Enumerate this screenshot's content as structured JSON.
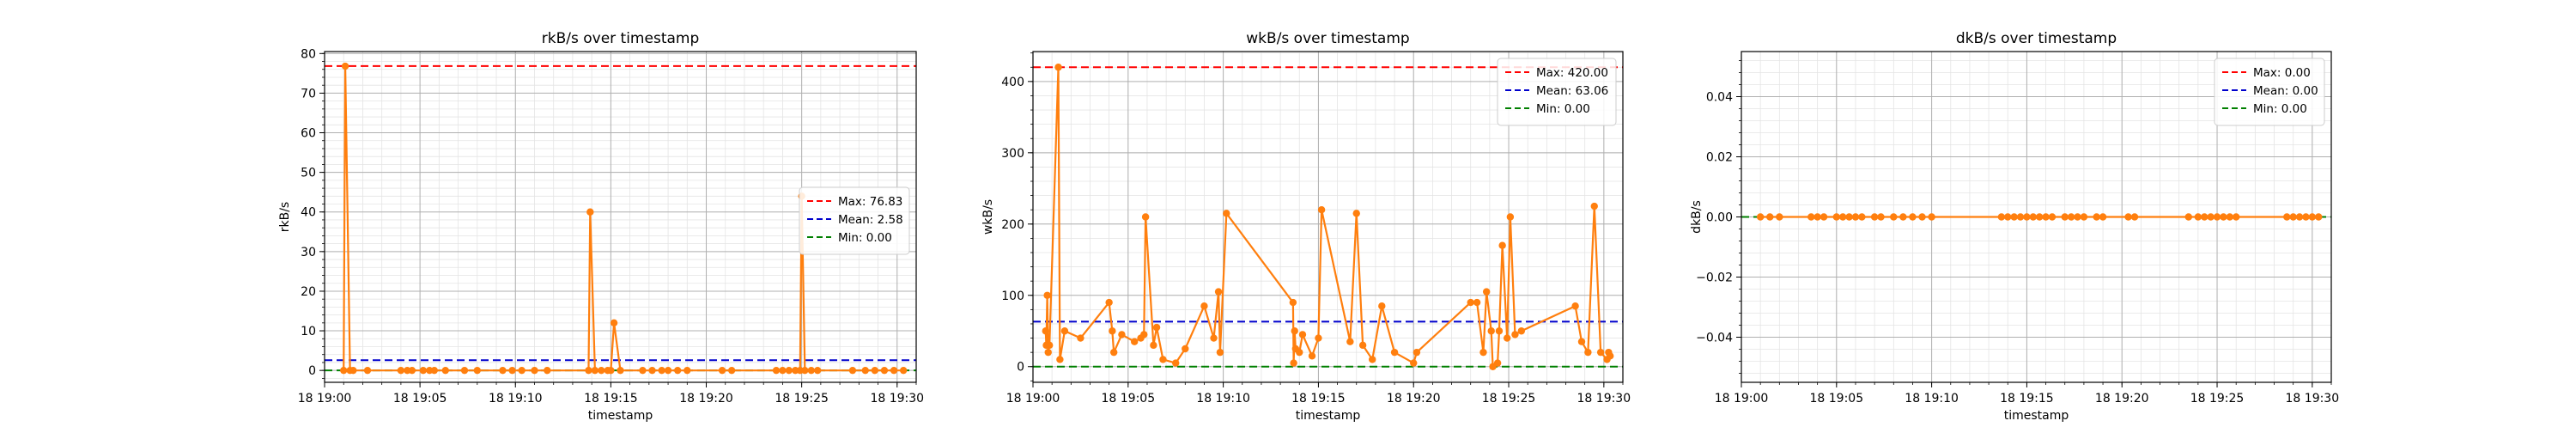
{
  "colors": {
    "series": "#ff7f0e",
    "max": "#ff0000",
    "mean": "#0000cc",
    "min": "#008000",
    "grid": "#b0b0b0"
  },
  "chart_data": [
    {
      "type": "line",
      "title": "rkB/s over timestamp",
      "xlabel": "timestamp",
      "ylabel": "rkB/s",
      "xlim": [
        "19:00",
        "19:31"
      ],
      "ylim": [
        -3,
        80.5
      ],
      "yticks": [
        0,
        10,
        20,
        30,
        40,
        50,
        60,
        70,
        80
      ],
      "ytick_labels": [
        "0",
        "10",
        "20",
        "30",
        "40",
        "50",
        "60",
        "70",
        "80"
      ],
      "xticks": [
        "19:00",
        "19:05",
        "19:10",
        "19:15",
        "19:20",
        "19:25",
        "19:30"
      ],
      "xtick_labels": [
        "18 19:00",
        "18 19:05",
        "18 19:10",
        "18 19:15",
        "18 19:20",
        "18 19:25",
        "18 19:30"
      ],
      "grid": true,
      "legend_position": "center-right",
      "series": [
        {
          "x": [
            "19:01:00",
            "19:01:05",
            "19:01:20",
            "19:01:30",
            "19:02:15",
            "19:04:00",
            "19:04:20",
            "19:04:35",
            "19:05:10",
            "19:05:30",
            "19:05:45",
            "19:06:20",
            "19:07:20",
            "19:08:00",
            "19:09:20",
            "19:09:50",
            "19:10:20",
            "19:11:00",
            "19:11:40",
            "19:13:50",
            "19:13:55",
            "19:14:10",
            "19:14:30",
            "19:14:50",
            "19:15:00",
            "19:15:10",
            "19:15:30",
            "19:16:40",
            "19:17:10",
            "19:17:40",
            "19:18:00",
            "19:18:30",
            "19:19:00",
            "19:20:50",
            "19:21:20",
            "19:23:40",
            "19:24:00",
            "19:24:20",
            "19:24:40",
            "19:24:55",
            "19:25:00",
            "19:25:10",
            "19:25:30",
            "19:25:50",
            "19:27:40",
            "19:28:20",
            "19:28:50",
            "19:29:20",
            "19:29:50",
            "19:30:20"
          ],
          "values": [
            0,
            76.8,
            0,
            0,
            0,
            0,
            0,
            0,
            0,
            0,
            0,
            0,
            0,
            0,
            0,
            0,
            0,
            0,
            0,
            0,
            40,
            0,
            0,
            0,
            0,
            12,
            0,
            0,
            0,
            0,
            0,
            0,
            0,
            0,
            0,
            0,
            0,
            0,
            0,
            0,
            44,
            0,
            0,
            0,
            0,
            0,
            0,
            0,
            0,
            0
          ]
        }
      ],
      "reference_lines": [
        {
          "label": "Max: 76.83",
          "value": 76.83,
          "color_key": "max"
        },
        {
          "label": "Mean: 2.58",
          "value": 2.58,
          "color_key": "mean"
        },
        {
          "label": "Min: 0.00",
          "value": 0.0,
          "color_key": "min"
        }
      ]
    },
    {
      "type": "line",
      "title": "wkB/s over timestamp",
      "xlabel": "timestamp",
      "ylabel": "wkB/s",
      "xlim": [
        "19:00",
        "19:31"
      ],
      "ylim": [
        -22,
        442
      ],
      "yticks": [
        0,
        100,
        200,
        300,
        400
      ],
      "ytick_labels": [
        "0",
        "100",
        "200",
        "300",
        "400"
      ],
      "xticks": [
        "19:00",
        "19:05",
        "19:10",
        "19:15",
        "19:20",
        "19:25",
        "19:30"
      ],
      "xtick_labels": [
        "18 19:00",
        "18 19:05",
        "18 19:10",
        "18 19:15",
        "18 19:20",
        "18 19:25",
        "18 19:30"
      ],
      "grid": true,
      "legend_position": "top-right",
      "series": [
        {
          "x": [
            "19:00:40",
            "19:00:42",
            "19:00:45",
            "19:00:48",
            "19:00:52",
            "19:01:20",
            "19:01:25",
            "19:01:40",
            "19:02:30",
            "19:04:00",
            "19:04:10",
            "19:04:15",
            "19:04:40",
            "19:05:20",
            "19:05:40",
            "19:05:50",
            "19:05:55",
            "19:06:20",
            "19:06:30",
            "19:06:50",
            "19:07:30",
            "19:08:00",
            "19:09:00",
            "19:09:30",
            "19:09:45",
            "19:09:50",
            "19:10:10",
            "19:13:40",
            "19:13:42",
            "19:13:45",
            "19:13:48",
            "19:14:00",
            "19:14:10",
            "19:14:40",
            "19:15:00",
            "19:15:10",
            "19:16:40",
            "19:17:00",
            "19:17:20",
            "19:17:50",
            "19:18:20",
            "19:19:00",
            "19:20:00",
            "19:20:10",
            "19:23:00",
            "19:23:20",
            "19:23:40",
            "19:23:50",
            "19:24:05",
            "19:24:10",
            "19:24:25",
            "19:24:30",
            "19:24:40",
            "19:24:55",
            "19:25:05",
            "19:25:20",
            "19:25:40",
            "19:28:30",
            "19:28:50",
            "19:29:10",
            "19:29:30",
            "19:29:50",
            "19:30:10",
            "19:30:15",
            "19:30:20"
          ],
          "values": [
            50,
            30,
            100,
            20,
            30,
            420,
            10,
            50,
            40,
            90,
            50,
            20,
            45,
            35,
            40,
            45,
            210,
            30,
            55,
            10,
            5,
            25,
            85,
            40,
            105,
            20,
            215,
            90,
            5,
            50,
            25,
            20,
            45,
            15,
            40,
            220,
            35,
            215,
            30,
            10,
            85,
            20,
            5,
            20,
            90,
            90,
            20,
            105,
            50,
            0,
            5,
            50,
            170,
            40,
            210,
            45,
            50,
            85,
            35,
            20,
            225,
            20,
            10,
            20,
            15
          ]
        }
      ],
      "reference_lines": [
        {
          "label": "Max: 420.00",
          "value": 420.0,
          "color_key": "max"
        },
        {
          "label": "Mean: 63.06",
          "value": 63.06,
          "color_key": "mean"
        },
        {
          "label": "Min: 0.00",
          "value": 0.0,
          "color_key": "min"
        }
      ]
    },
    {
      "type": "line",
      "title": "dkB/s over timestamp",
      "xlabel": "timestamp",
      "ylabel": "dkB/s",
      "xlim": [
        "19:00",
        "19:31"
      ],
      "ylim": [
        -0.055,
        0.055
      ],
      "yticks": [
        -0.04,
        -0.02,
        0.0,
        0.02,
        0.04
      ],
      "ytick_labels": [
        "−0.04",
        "−0.02",
        "0.00",
        "0.02",
        "0.04"
      ],
      "xticks": [
        "19:00",
        "19:05",
        "19:10",
        "19:15",
        "19:20",
        "19:25",
        "19:30"
      ],
      "xtick_labels": [
        "18 19:00",
        "18 19:05",
        "18 19:10",
        "18 19:15",
        "18 19:20",
        "18 19:25",
        "18 19:30"
      ],
      "grid": true,
      "legend_position": "top-right",
      "series": [
        {
          "x": [
            "19:01:00",
            "19:01:30",
            "19:02:00",
            "19:03:40",
            "19:04:00",
            "19:04:20",
            "19:05:00",
            "19:05:20",
            "19:05:40",
            "19:06:00",
            "19:06:20",
            "19:07:00",
            "19:07:20",
            "19:08:00",
            "19:08:30",
            "19:09:00",
            "19:09:30",
            "19:10:00",
            "19:13:40",
            "19:14:00",
            "19:14:20",
            "19:14:40",
            "19:15:00",
            "19:15:20",
            "19:15:40",
            "19:16:00",
            "19:16:20",
            "19:17:00",
            "19:17:20",
            "19:17:40",
            "19:18:00",
            "19:18:40",
            "19:19:00",
            "19:20:20",
            "19:20:40",
            "19:23:30",
            "19:24:00",
            "19:24:20",
            "19:24:40",
            "19:25:00",
            "19:25:20",
            "19:25:40",
            "19:26:00",
            "19:28:40",
            "19:29:00",
            "19:29:20",
            "19:29:40",
            "19:30:00",
            "19:30:20"
          ],
          "values": [
            0,
            0,
            0,
            0,
            0,
            0,
            0,
            0,
            0,
            0,
            0,
            0,
            0,
            0,
            0,
            0,
            0,
            0,
            0,
            0,
            0,
            0,
            0,
            0,
            0,
            0,
            0,
            0,
            0,
            0,
            0,
            0,
            0,
            0,
            0,
            0,
            0,
            0,
            0,
            0,
            0,
            0,
            0,
            0,
            0,
            0,
            0,
            0,
            0
          ]
        }
      ],
      "reference_lines": [
        {
          "label": "Max: 0.00",
          "value": 0.0,
          "color_key": "max"
        },
        {
          "label": "Mean: 0.00",
          "value": 0.0,
          "color_key": "mean"
        },
        {
          "label": "Min: 0.00",
          "value": 0.0,
          "color_key": "min"
        }
      ]
    }
  ]
}
